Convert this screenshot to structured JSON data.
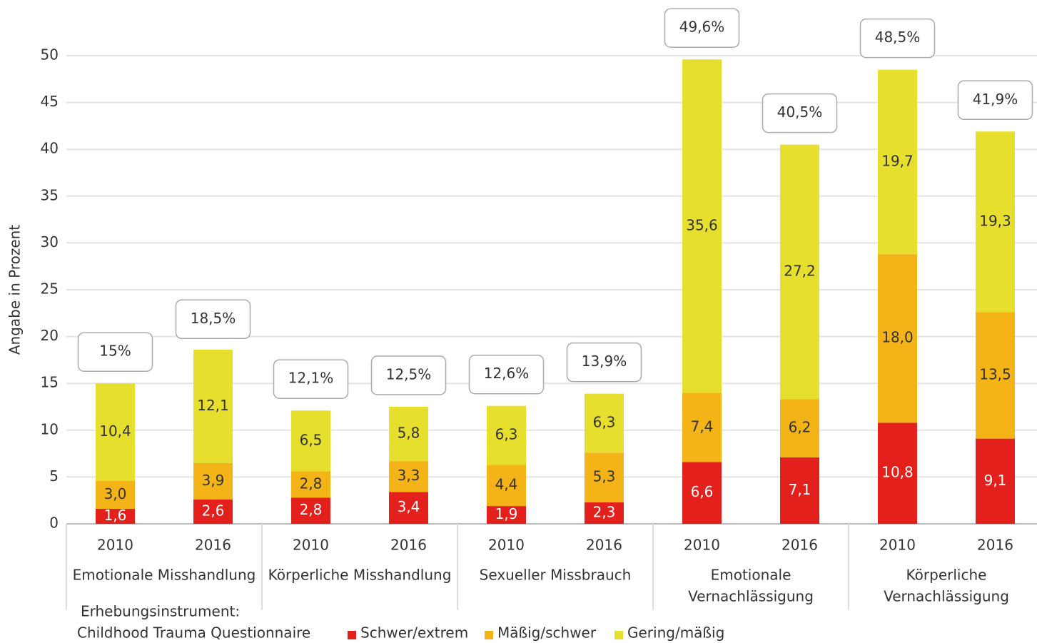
{
  "chart_data": {
    "type": "stacked_bar",
    "y_label": "Angabe in Prozent",
    "ylim": [
      0,
      50
    ],
    "yticks": [
      0,
      5,
      10,
      15,
      20,
      25,
      30,
      35,
      40,
      45,
      50
    ],
    "grid": true,
    "groups": [
      {
        "name": [
          "Emotionale Misshandlung"
        ],
        "categories": [
          "2010",
          "2016"
        ]
      },
      {
        "name": [
          "Körperliche Misshandlung"
        ],
        "categories": [
          "2010",
          "2016"
        ]
      },
      {
        "name": [
          "Sexueller Missbrauch"
        ],
        "categories": [
          "2010",
          "2016"
        ]
      },
      {
        "name": [
          "Emotionale",
          "Vernachlässigung"
        ],
        "categories": [
          "2010",
          "2016"
        ]
      },
      {
        "name": [
          "Körperliche",
          "Vernachlässigung"
        ],
        "categories": [
          "2010",
          "2016"
        ]
      }
    ],
    "series": [
      {
        "name": "Schwer/extrem",
        "color": "#e3201b",
        "label_color": "#ffffff",
        "values": [
          1.6,
          2.6,
          2.8,
          3.4,
          1.9,
          2.3,
          6.6,
          7.1,
          10.8,
          9.1
        ],
        "value_labels": [
          "1,6",
          "2,6",
          "2,8",
          "3,4",
          "1,9",
          "2,3",
          "6,6",
          "7,1",
          "10,8",
          "9,1"
        ]
      },
      {
        "name": "Mäßig/schwer",
        "color": "#f4b417",
        "label_color": "#333333",
        "values": [
          3.0,
          3.9,
          2.8,
          3.3,
          4.4,
          5.3,
          7.4,
          6.2,
          18.0,
          13.5
        ],
        "value_labels": [
          "3,0",
          "3,9",
          "2,8",
          "3,3",
          "4,4",
          "5,3",
          "7,4",
          "6,2",
          "18,0",
          "13,5"
        ]
      },
      {
        "name": "Gering/mäßig",
        "color": "#e7df2e",
        "label_color": "#333333",
        "values": [
          10.4,
          12.1,
          6.5,
          5.8,
          6.3,
          6.3,
          35.6,
          27.2,
          19.7,
          19.3
        ],
        "value_labels": [
          "10,4",
          "12,1",
          "6,5",
          "5,8",
          "6,3",
          "6,3",
          "35,6",
          "27,2",
          "19,7",
          "19,3"
        ]
      }
    ],
    "totals": [
      15,
      18.5,
      12.1,
      12.5,
      12.6,
      13.9,
      49.6,
      40.5,
      48.5,
      41.9
    ],
    "total_labels": [
      "15%",
      "18,5%",
      "12,1%",
      "12,5%",
      "12,6%",
      "13,9%",
      "49,6%",
      "40,5%",
      "48,5%",
      "41,9%"
    ],
    "note": [
      "Erhebungsinstrument:",
      "Childhood Trauma Questionnaire"
    ]
  }
}
